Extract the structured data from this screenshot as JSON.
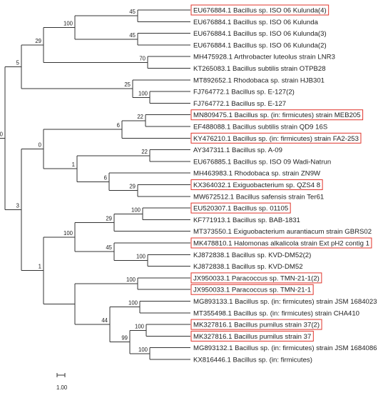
{
  "highlight_color": "#e0342b",
  "branch_color": "#333333",
  "leaves": [
    {
      "label": "EU676884.1 Bacillus sp. ISO 06 Kulunda(4)",
      "highlighted": true
    },
    {
      "label": "EU676884.1 Bacillus sp. ISO 06 Kulunda",
      "highlighted": false
    },
    {
      "label": "EU676884.1 Bacillus sp. ISO 06 Kulunda(3)",
      "highlighted": false
    },
    {
      "label": "EU676884.1 Bacillus sp. ISO 06 Kulunda(2)",
      "highlighted": false
    },
    {
      "label": "MH475928.1 Arthrobacter luteolus strain LNR3",
      "highlighted": false
    },
    {
      "label": "KT265083.1 Bacillus subtilis strain OTPB28",
      "highlighted": false
    },
    {
      "label": "MT892652.1 Rhodobaca sp. strain HJB301",
      "highlighted": false
    },
    {
      "label": "FJ764772.1 Bacillus sp. E-127(2)",
      "highlighted": false
    },
    {
      "label": "FJ764772.1 Bacillus sp. E-127",
      "highlighted": false
    },
    {
      "label": "MN809475.1 Bacillus sp. (in: firmicutes) strain MEB205",
      "highlighted": true
    },
    {
      "label": "EF488088.1 Bacillus subtilis strain QD9 16S",
      "highlighted": false
    },
    {
      "label": "KY476210.1 Bacillus sp. (in: firmicutes) strain FA2-253",
      "highlighted": true
    },
    {
      "label": "AY347311.1 Bacillus sp. A-09",
      "highlighted": false
    },
    {
      "label": "EU676885.1 Bacillus sp. ISO 09 Wadi-Natrun",
      "highlighted": false
    },
    {
      "label": "MH463983.1 Rhodobaca sp. strain ZN9W",
      "highlighted": false
    },
    {
      "label": "KX364032.1 Exiguobacterium sp. QZS4 8",
      "highlighted": true
    },
    {
      "label": "MW672512.1 Bacillus safensis strain Ter61",
      "highlighted": false
    },
    {
      "label": "EU520307.1 Bacillus sp. 01105",
      "highlighted": true
    },
    {
      "label": "KF771913.1 Bacillus sp. BAB-1831",
      "highlighted": false
    },
    {
      "label": "MT373550.1 Exiguobacterium aurantiacum strain GBRS02",
      "highlighted": false
    },
    {
      "label": "MK478810.1 Halomonas alkalicola strain Ext pH2 contig 1",
      "highlighted": true
    },
    {
      "label": "KJ872838.1 Bacillus sp. KVD-DM52(2)",
      "highlighted": false
    },
    {
      "label": "KJ872838.1 Bacillus sp. KVD-DM52",
      "highlighted": false
    },
    {
      "label": "JX950033.1 Paracoccus sp. TMN-21-1(2)",
      "highlighted": true
    },
    {
      "label": "JX950033.1 Paracoccus sp. TMN-21-1",
      "highlighted": true
    },
    {
      "label": "MG893133.1 Bacillus sp. (in: firmicutes) strain JSM 1684023",
      "highlighted": false
    },
    {
      "label": "MT355498.1 Bacillus sp. (in: firmicutes) strain CHA410",
      "highlighted": false
    },
    {
      "label": "MK327816.1 Bacillus pumilus strain 37(2)",
      "highlighted": true
    },
    {
      "label": "MK327816.1 Bacillus pumilus strain 37",
      "highlighted": true
    },
    {
      "label": "MG893132.1 Bacillus sp. (in: firmicutes) strain JSM 1684086",
      "highlighted": false
    },
    {
      "label": "KX816446.1 Bacillus sp. (in: firmicutes)",
      "highlighted": false
    }
  ],
  "bootstrap_values": [
    "45",
    "100",
    "45",
    "29",
    "70",
    "5",
    "0",
    "25",
    "100",
    "22",
    "6",
    "0",
    "22",
    "1",
    "6",
    "29",
    "29",
    "100",
    "3",
    "100",
    "45",
    "100",
    "100",
    "1",
    "100",
    "44",
    "100",
    "99",
    "100"
  ],
  "scale_bar": {
    "label": "1.00"
  }
}
